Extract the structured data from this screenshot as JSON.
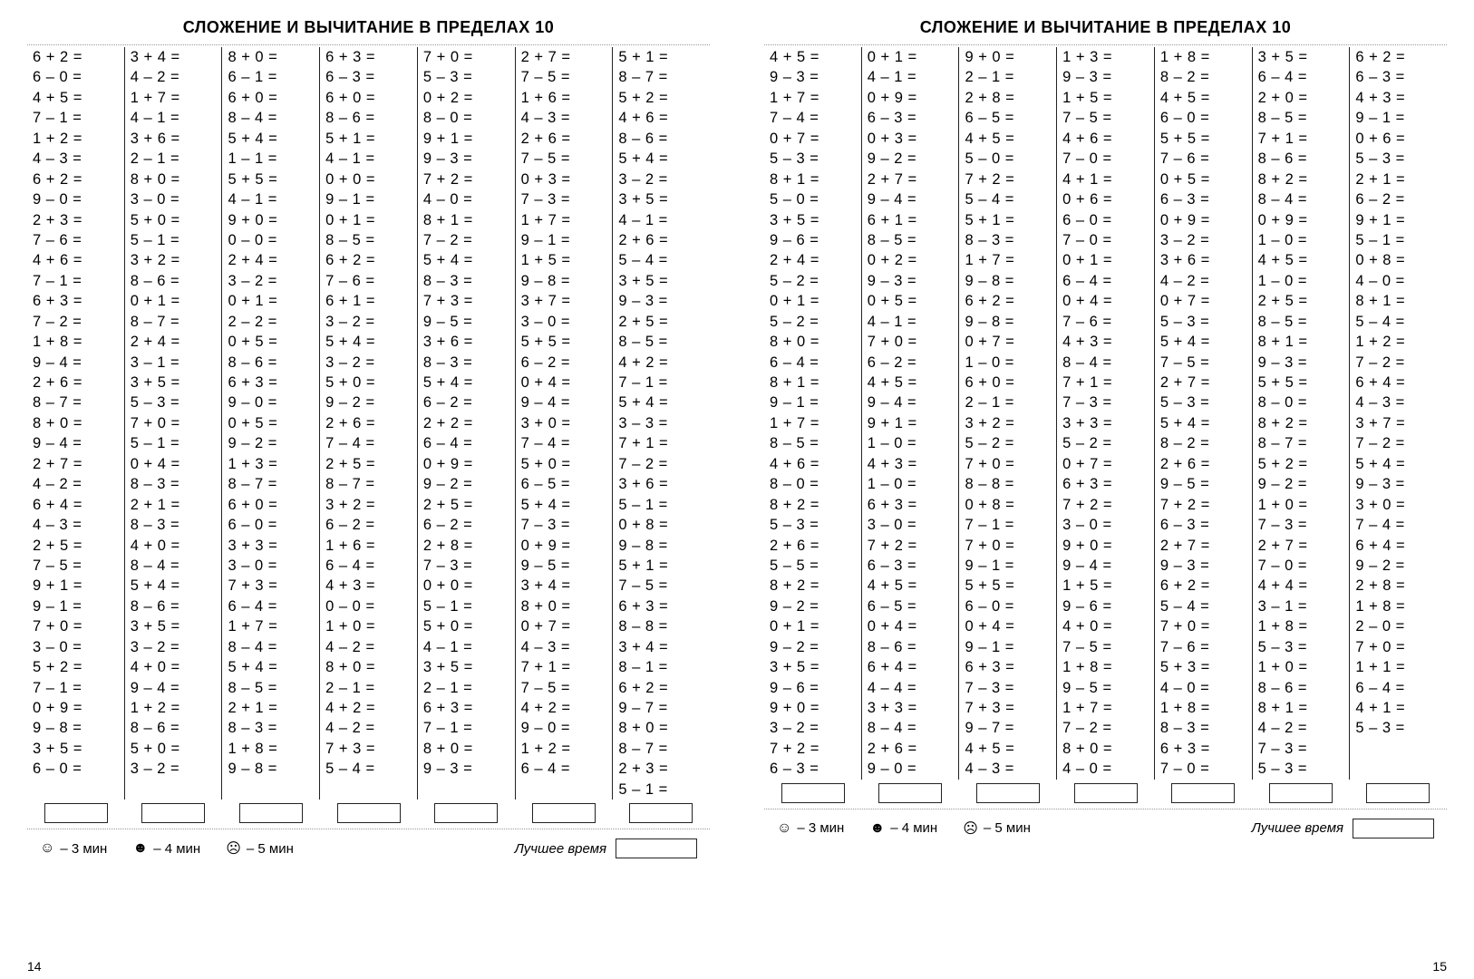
{
  "title": "СЛОЖЕНИЕ И ВЫЧИТАНИЕ В ПРЕДЕЛАХ 10",
  "footer": {
    "t3": "– 3 мин",
    "t4": "– 4 мин",
    "t5": "– 5 мин",
    "best": "Лучшее время"
  },
  "faces": {
    "happy": "☺",
    "neutral": "☻",
    "sad": "☹"
  },
  "page_left": {
    "number": "14",
    "columns": [
      [
        "6 + 2 =",
        "6 – 0 =",
        "4 + 5 =",
        "7 – 1 =",
        "1 + 2 =",
        "4 – 3 =",
        "6 + 2 =",
        "9 – 0 =",
        "2 + 3 =",
        "7 – 6 =",
        "4 + 6 =",
        "7 – 1 =",
        "6 + 3 =",
        "7 – 2 =",
        "1 + 8 =",
        "9 – 4 =",
        "2 + 6 =",
        "8 – 7 =",
        "8 + 0 =",
        "9 – 4 =",
        "2 + 7 =",
        "4 – 2 =",
        "6 + 4 =",
        "4 – 3 =",
        "2 + 5 =",
        "7 – 5 =",
        "9 + 1 =",
        "9 – 1 =",
        "7 + 0 =",
        "3 – 0 =",
        "5 + 2 =",
        "7 – 1 =",
        "0 + 9 =",
        "9 – 8 =",
        "3 + 5 =",
        "6 – 0 ="
      ],
      [
        "3 + 4 =",
        "4 – 2 =",
        "1 + 7 =",
        "4 – 1 =",
        "3 + 6 =",
        "2 – 1 =",
        "8 + 0 =",
        "3 – 0 =",
        "5 + 0 =",
        "5 – 1 =",
        "3 + 2 =",
        "8 – 6 =",
        "0 + 1 =",
        "8 – 7 =",
        "2 + 4 =",
        "3 – 1 =",
        "3 + 5 =",
        "5 – 3 =",
        "7 + 0 =",
        "5 – 1 =",
        "0 + 4 =",
        "8 – 3 =",
        "2 + 1 =",
        "8 – 3 =",
        "4 + 0 =",
        "8 – 4 =",
        "5 + 4 =",
        "8 – 6 =",
        "3 + 5 =",
        "3 – 2 =",
        "4 + 0 =",
        "9 – 4 =",
        "1 + 2 =",
        "8 – 6 =",
        "5 + 0 =",
        "3 – 2 ="
      ],
      [
        "8 + 0 =",
        "6 – 1 =",
        "6 + 0 =",
        "8 – 4 =",
        "5 + 4 =",
        "1 – 1 =",
        "5 + 5 =",
        "4 – 1 =",
        "9 + 0 =",
        "0 – 0 =",
        "2 + 4 =",
        "3 – 2 =",
        "0 + 1 =",
        "2 – 2 =",
        "0 + 5 =",
        "8 – 6 =",
        "6 + 3 =",
        "9 – 0 =",
        "0 + 5 =",
        "9 – 2 =",
        "1 + 3 =",
        "8 – 7 =",
        "6 + 0 =",
        "6 – 0 =",
        "3 + 3 =",
        "3 – 0 =",
        "7 + 3 =",
        "6 – 4 =",
        "1 + 7 =",
        "8 – 4 =",
        "5 + 4 =",
        "8 – 5 =",
        "2 + 1 =",
        "8 – 3 =",
        "1 + 8 =",
        "9 – 8 ="
      ],
      [
        "6 + 3 =",
        "6 – 3 =",
        "6 + 0 =",
        "8 – 6 =",
        "5 + 1 =",
        "4 – 1 =",
        "0 + 0 =",
        "9 – 1 =",
        "0 + 1 =",
        "8 – 5 =",
        "6 + 2 =",
        "7 – 6 =",
        "6 + 1 =",
        "3 – 2 =",
        "5 + 4 =",
        "3 – 2 =",
        "5 + 0 =",
        "9 – 2 =",
        "2 + 6 =",
        "7 – 4 =",
        "2 + 5 =",
        "8 – 7 =",
        "3 + 2 =",
        "6 – 2 =",
        "1 + 6 =",
        "6 – 4 =",
        "4 + 3 =",
        "0 – 0 =",
        "1 + 0 =",
        "4 – 2 =",
        "8 + 0 =",
        "2 – 1 =",
        "4 + 2 =",
        "4 – 2 =",
        "7 + 3 =",
        "5 – 4 ="
      ],
      [
        "7 + 0 =",
        "5 – 3 =",
        "0 + 2 =",
        "8 – 0 =",
        "9 + 1 =",
        "9 – 3 =",
        "7 + 2 =",
        "4 – 0 =",
        "8 + 1 =",
        "7 – 2 =",
        "5 + 4 =",
        "8 – 3 =",
        "7 + 3 =",
        "9 – 5 =",
        "3 + 6 =",
        "8 – 3 =",
        "5 + 4 =",
        "6 – 2 =",
        "2 + 2 =",
        "6 – 4 =",
        "0 + 9 =",
        "9 – 2 =",
        "2 + 5 =",
        "6 – 2 =",
        "2 + 8 =",
        "7 – 3 =",
        "0 + 0 =",
        "5 – 1 =",
        "5 + 0 =",
        "4 – 1 =",
        "3 + 5 =",
        "2 – 1 =",
        "6 + 3 =",
        "7 – 1 =",
        "8 + 0 =",
        "9 – 3 ="
      ],
      [
        "2 + 7 =",
        "7 – 5 =",
        "1 + 6 =",
        "4 – 3 =",
        "2 + 6 =",
        "7 – 5 =",
        "0 + 3 =",
        "7 – 3 =",
        "1 + 7 =",
        "9 – 1 =",
        "1 + 5 =",
        "9 – 8 =",
        "3 + 7 =",
        "3 – 0 =",
        "5 + 5 =",
        "6 – 2 =",
        "0 + 4 =",
        "9 – 4 =",
        "3 + 0 =",
        "7 – 4 =",
        "5 + 0 =",
        "6 – 5 =",
        "5 + 4 =",
        "7 – 3 =",
        "0 + 9 =",
        "9 – 5 =",
        "3 + 4 =",
        "8 + 0 =",
        "0 + 7 =",
        "4 – 3 =",
        "7 + 1 =",
        "7 – 5 =",
        "4 + 2 =",
        "9 – 0 =",
        "1 + 2 =",
        "6 – 4 ="
      ],
      [
        "5 + 1 =",
        "8 – 7 =",
        "5 + 2 =",
        "4 + 6 =",
        "8 – 6 =",
        "5 + 4 =",
        "3 – 2 =",
        "3 + 5 =",
        "4 – 1 =",
        "2 + 6 =",
        "5 – 4 =",
        "3 + 5 =",
        "9 – 3 =",
        "2 + 5 =",
        "8 – 5 =",
        "4 + 2 =",
        "7 – 1 =",
        "5 + 4 =",
        "3 – 3 =",
        "7 + 1 =",
        "7 – 2 =",
        "3 + 6 =",
        "5 – 1 =",
        "0 + 8 =",
        "9 – 8 =",
        "5 + 1 =",
        "7 – 5 =",
        "6 + 3 =",
        "8 – 8 =",
        "3 + 4 =",
        "8 – 1 =",
        "6 + 2 =",
        "9 – 7 =",
        "8 + 0 =",
        "8 – 7 =",
        "2 + 3 =",
        "5 – 1 ="
      ]
    ]
  },
  "page_right": {
    "number": "15",
    "columns": [
      [
        "4 + 5 =",
        "9 – 3 =",
        "1 + 7 =",
        "7 – 4 =",
        "0 + 7 =",
        "5 – 3 =",
        "8 + 1 =",
        "5 – 0 =",
        "3 + 5 =",
        "9 – 6 =",
        "2 + 4 =",
        "5 – 2 =",
        "0 + 1 =",
        "5 – 2 =",
        "8 + 0 =",
        "6 – 4 =",
        "8 + 1 =",
        "9 – 1 =",
        "1 + 7 =",
        "8 – 5 =",
        "4 + 6 =",
        "8 – 0 =",
        "8 + 2 =",
        "5 – 3 =",
        "2 + 6 =",
        "5 – 5 =",
        "8 + 2 =",
        "9 – 2 =",
        "0 + 1 =",
        "9 – 2 =",
        "3 + 5 =",
        "9 – 6 =",
        "9 + 0 =",
        "3 – 2 =",
        "7 + 2 =",
        "6 – 3 ="
      ],
      [
        "0 + 1 =",
        "4 – 1 =",
        "0 + 9 =",
        "6 – 3 =",
        "0 + 3 =",
        "9 – 2 =",
        "2 + 7 =",
        "9 – 4 =",
        "6 + 1 =",
        "8 – 5 =",
        "0 + 2 =",
        "9 – 3 =",
        "0 + 5 =",
        "4 – 1 =",
        "7 + 0 =",
        "6 – 2 =",
        "4 + 5 =",
        "9 – 4 =",
        "9 + 1 =",
        "1 – 0 =",
        "4 + 3 =",
        "1 – 0 =",
        "6 + 3 =",
        "3 – 0 =",
        "7 + 2 =",
        "6 – 3 =",
        "4 + 5 =",
        "6 – 5 =",
        "0 + 4 =",
        "8 – 6 =",
        "6 + 4 =",
        "4 – 4 =",
        "3 + 3 =",
        "8 – 4 =",
        "2 + 6 =",
        "9 – 0 ="
      ],
      [
        "9 + 0 =",
        "2 – 1 =",
        "2 + 8 =",
        "6 – 5 =",
        "4 + 5 =",
        "5 – 0 =",
        "7 + 2 =",
        "5 – 4 =",
        "5 + 1 =",
        "8 – 3 =",
        "1 + 7 =",
        "9 – 8 =",
        "6 + 2 =",
        "9 – 8 =",
        "0 + 7 =",
        "1 – 0 =",
        "6 + 0 =",
        "2 – 1 =",
        "3 + 2 =",
        "5 – 2 =",
        "7 + 0 =",
        "8 – 8 =",
        "0 + 8 =",
        "7 – 1 =",
        "7 + 0 =",
        "9 – 1 =",
        "5 + 5 =",
        "6 – 0 =",
        "0 + 4 =",
        "9 – 1 =",
        "6 + 3 =",
        "7 – 3 =",
        "7 + 3 =",
        "9 – 7 =",
        "4 + 5 =",
        "4 – 3 ="
      ],
      [
        "1 + 3 =",
        "9 – 3 =",
        "1 + 5 =",
        "7 – 5 =",
        "4 + 6 =",
        "7 – 0 =",
        "4 + 1 =",
        "0 + 6 =",
        "6 – 0 =",
        "7 – 0 =",
        "0 + 1 =",
        "6 – 4 =",
        "0 + 4 =",
        "7 – 6 =",
        "4 + 3 =",
        "8 – 4 =",
        "7 + 1 =",
        "7 – 3 =",
        "3 + 3 =",
        "5 – 2 =",
        "0 + 7 =",
        "6 + 3 =",
        "7 + 2 =",
        "3 – 0 =",
        "9 + 0 =",
        "9 – 4 =",
        "1 + 5 =",
        "9 – 6 =",
        "4 + 0 =",
        "7 – 5 =",
        "1 + 8 =",
        "9 – 5 =",
        "1 + 7 =",
        "7 – 2 =",
        "8 + 0 =",
        "4 – 0 ="
      ],
      [
        "1 + 8 =",
        "8 – 2 =",
        "4 + 5 =",
        "6 – 0 =",
        "5 + 5 =",
        "7 – 6 =",
        "0 + 5 =",
        "6 – 3 =",
        "0 + 9 =",
        "3 – 2 =",
        "3 + 6 =",
        "4 – 2 =",
        "0 + 7 =",
        "5 – 3 =",
        "5 + 4 =",
        "7 – 5 =",
        "2 + 7 =",
        "5 – 3 =",
        "5 + 4 =",
        "8 – 2 =",
        "2 + 6 =",
        "9 – 5 =",
        "7 + 2 =",
        "6 – 3 =",
        "2 + 7 =",
        "9 – 3 =",
        "6 + 2 =",
        "5 – 4 =",
        "7 + 0 =",
        "7 – 6 =",
        "5 + 3 =",
        "4 – 0 =",
        "1 + 8 =",
        "8 – 3 =",
        "6 + 3 =",
        "7 – 0 ="
      ],
      [
        "3 + 5 =",
        "6 – 4 =",
        "2 + 0 =",
        "8 – 5 =",
        "7 + 1 =",
        "8 – 6 =",
        "8 + 2 =",
        "8 – 4 =",
        "0 + 9 =",
        "1 – 0 =",
        "4 + 5 =",
        "1 – 0 =",
        "2 + 5 =",
        "8 – 5 =",
        "8 + 1 =",
        "9 – 3 =",
        "5 + 5 =",
        "8 – 0 =",
        "8 + 2 =",
        "8 – 7 =",
        "5 + 2 =",
        "9 – 2 =",
        "1 + 0 =",
        "7 – 3 =",
        "2 + 7 =",
        "7 – 0 =",
        "4 + 4 =",
        "3 – 1 =",
        "1 + 8 =",
        "5 – 3 =",
        "1 + 0 =",
        "8 – 6 =",
        "8 + 1 =",
        "4 – 2 =",
        "7 – 3 =",
        "5 – 3 ="
      ],
      [
        "6 + 2 =",
        "6 – 3 =",
        "4 + 3 =",
        "9 – 1 =",
        "0 + 6 =",
        "5 – 3 =",
        "2 + 1 =",
        "6 – 2 =",
        "9 + 1 =",
        "5 – 1 =",
        "0 + 8 =",
        "4 – 0 =",
        "8 + 1 =",
        "5 – 4 =",
        "1 + 2 =",
        "7 – 2 =",
        "6 + 4 =",
        "4 – 3 =",
        "3 + 7 =",
        "7 – 2 =",
        "5 + 4 =",
        "9 – 3 =",
        "3 + 0 =",
        "7 – 4 =",
        "6 + 4 =",
        "9 – 2 =",
        "2 + 8 =",
        "1 + 8 =",
        "2 – 0 =",
        "7 + 0 =",
        "1 + 1 =",
        "6 – 4 =",
        "4 + 1 =",
        "5 – 3 ="
      ]
    ]
  }
}
